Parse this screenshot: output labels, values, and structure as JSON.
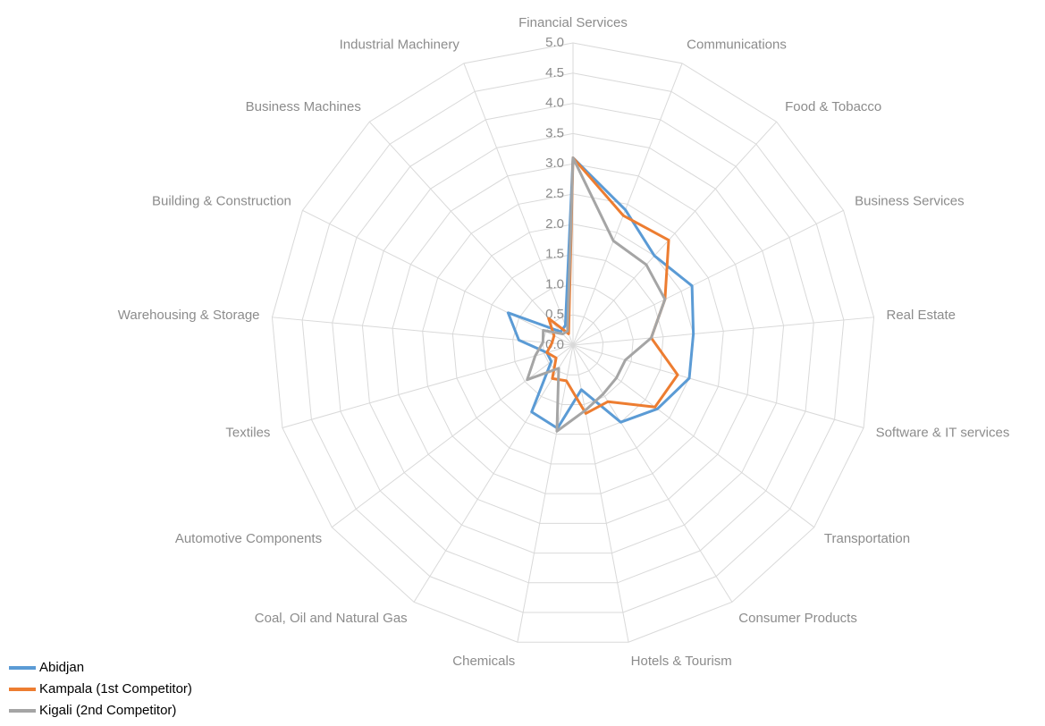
{
  "chart_data": {
    "type": "radar",
    "categories": [
      "Financial Services",
      "Communications",
      "Food & Tobacco",
      "Business Services",
      "Real Estate",
      "Software & IT services",
      "Transportation",
      "Consumer Products",
      "Hotels & Tourism",
      "Chemicals",
      "Coal, Oil and Natural Gas",
      "Automotive Components",
      "Textiles",
      "Warehousing & Storage",
      "Building & Construction",
      "Business Machines",
      "Industrial Machinery"
    ],
    "series": [
      {
        "name": "Abidjan",
        "color": "#5b9bd5",
        "values": [
          3.1,
          2.4,
          2.0,
          2.2,
          2.0,
          2.0,
          1.75,
          1.5,
          0.75,
          1.4,
          1.3,
          0.45,
          0.45,
          0.9,
          1.2,
          0.3,
          0.35
        ]
      },
      {
        "name": "Kampala (1st Competitor)",
        "color": "#ed7d31",
        "values": [
          3.1,
          2.3,
          2.35,
          1.7,
          1.3,
          1.8,
          1.7,
          1.1,
          1.15,
          0.6,
          0.65,
          0.35,
          0.45,
          0.35,
          0.35,
          0.6,
          0.2
        ]
      },
      {
        "name": "Kigali (2nd Competitor)",
        "color": "#a5a5a5",
        "values": [
          3.1,
          1.85,
          1.8,
          1.7,
          1.3,
          0.9,
          0.9,
          0.95,
          1.1,
          1.45,
          0.45,
          0.95,
          0.65,
          0.5,
          0.55,
          0.25,
          0.25
        ]
      }
    ],
    "ylim": [
      0,
      5
    ],
    "yticks": [
      {
        "value": 0,
        "label": "0.0"
      },
      0.5,
      {
        "value": 1,
        "label": "1.0"
      },
      1.5,
      {
        "value": 2,
        "label": "2.0"
      },
      2.5,
      {
        "value": 3,
        "label": "3.0"
      },
      3.5,
      {
        "value": 4,
        "label": "4.0"
      },
      4.5,
      {
        "value": 5,
        "label": "5.0"
      }
    ],
    "grid": true,
    "legend": "bottom-left"
  }
}
